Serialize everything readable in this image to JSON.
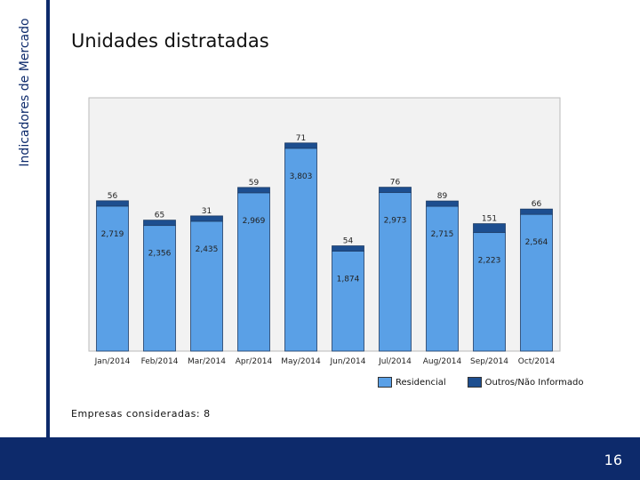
{
  "sidebar": {
    "label": "Indicadores de Mercado"
  },
  "header": {
    "title": "Unidades distratadas"
  },
  "footnote": "Empresas consideradas: 8",
  "page_number": "16",
  "colors": {
    "residencial": "#5aa0e6",
    "outros": "#1d4e8f",
    "navy": "#0d2a6b",
    "plot_bg": "#f2f2f2"
  },
  "chart_data": {
    "type": "bar",
    "stacked": true,
    "title": "Unidades distratadas",
    "categories": [
      "Jan/2014",
      "Feb/2014",
      "Mar/2014",
      "Apr/2014",
      "May/2014",
      "Jun/2014",
      "Jul/2014",
      "Aug/2014",
      "Sep/2014",
      "Oct/2014"
    ],
    "series": [
      {
        "name": "Residencial",
        "values": [
          2719,
          2356,
          2435,
          2969,
          3803,
          1874,
          2973,
          2715,
          2223,
          2564
        ],
        "labels": [
          "2,719",
          "2,356",
          "2,435",
          "2,969",
          "3,803",
          "1,874",
          "2,973",
          "2,715",
          "2,223",
          "2,564"
        ]
      },
      {
        "name": "Outros/Não Informado",
        "values": [
          56,
          65,
          31,
          59,
          71,
          54,
          76,
          89,
          151,
          66
        ],
        "labels": [
          "56",
          "65",
          "31",
          "59",
          "71",
          "54",
          "76",
          "89",
          "151",
          "66"
        ]
      }
    ],
    "ylim": [
      0,
      4000
    ],
    "legend_position": "bottom-right"
  }
}
